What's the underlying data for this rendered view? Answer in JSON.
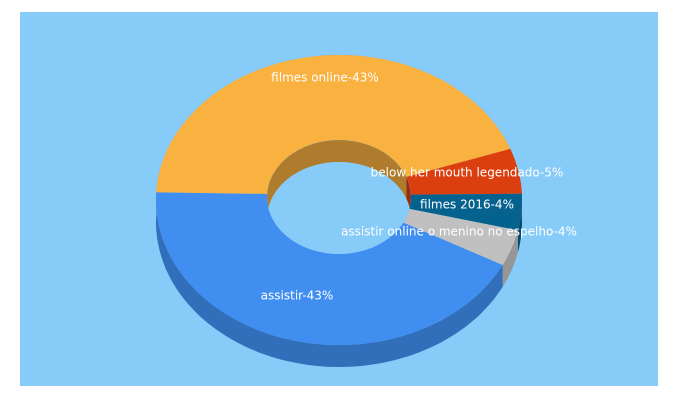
{
  "chart_data": {
    "type": "donut3d",
    "value_labels": [
      "filmes online-43%",
      "below her mouth legendado-5%",
      "filmes 2016-4%",
      "assistir online o menino no espelho-4%",
      "assistir-43%"
    ],
    "values": [
      43,
      5,
      4,
      4,
      43
    ],
    "colors": [
      "#f9b13f",
      "#dc3f0f",
      "#05628f",
      "#c0c0c0",
      "#3f8ef0"
    ]
  }
}
